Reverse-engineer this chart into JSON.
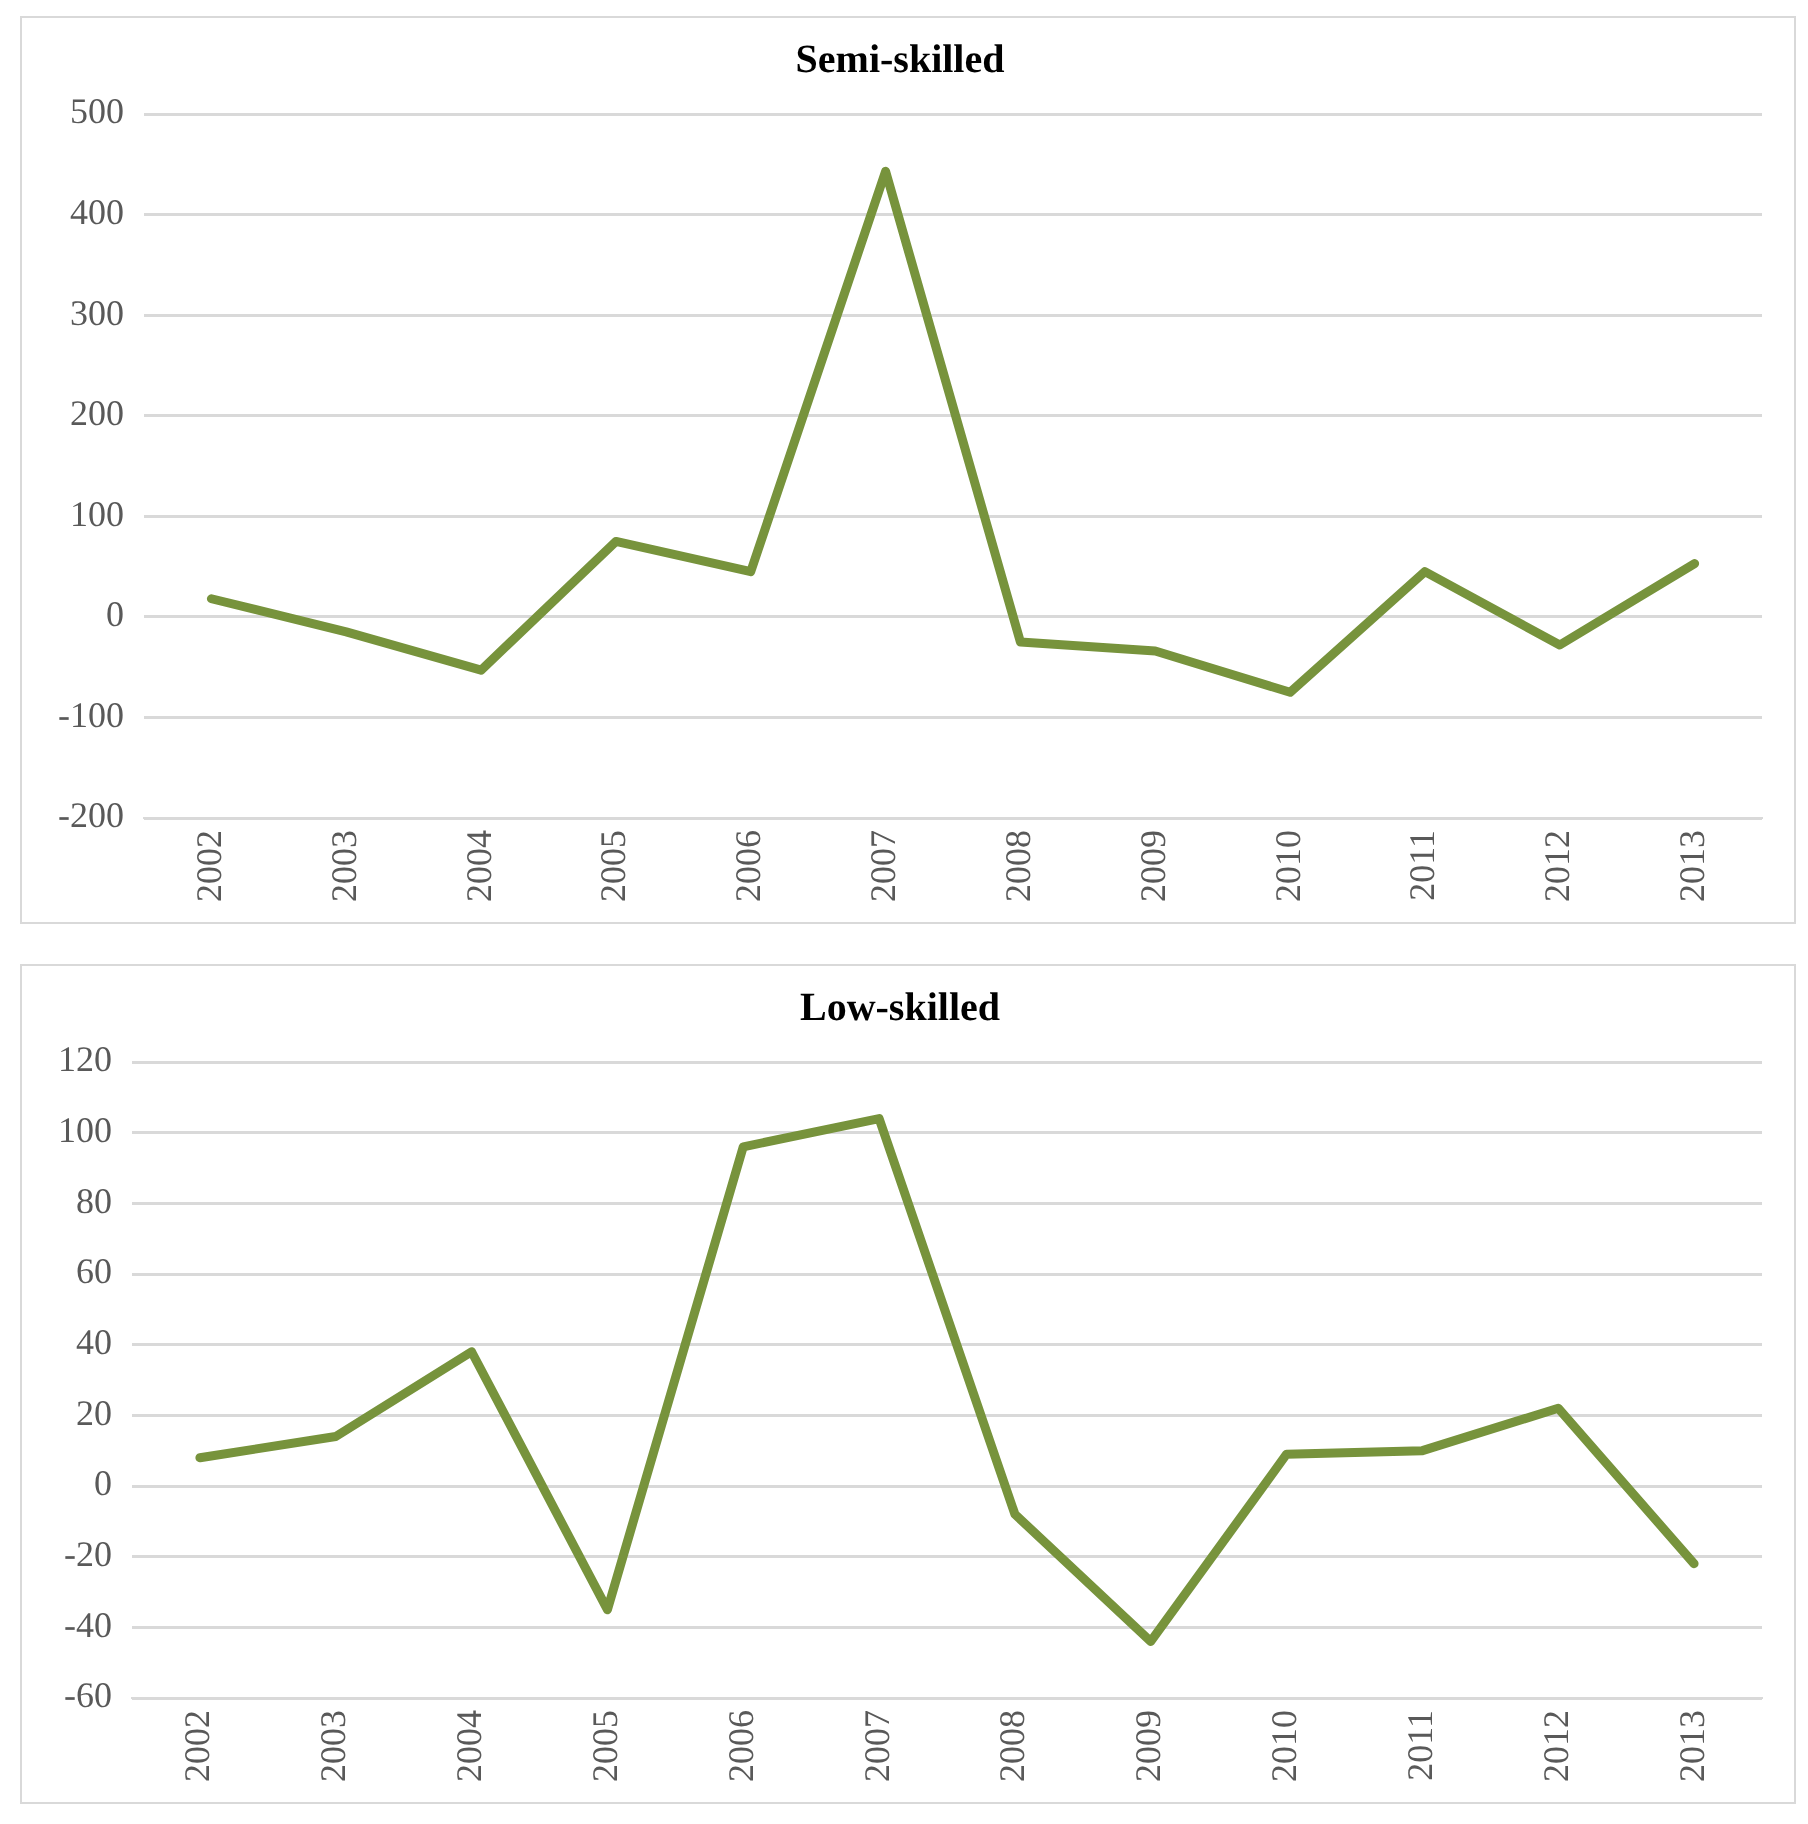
{
  "chart_data": [
    {
      "type": "line",
      "title": "Semi-skilled",
      "categories": [
        "2002",
        "2003",
        "2004",
        "2005",
        "2006",
        "2007",
        "2008",
        "2009",
        "2010",
        "2011",
        "2012",
        "2013"
      ],
      "series": [
        {
          "color": "#77933c",
          "values": [
            18,
            -15,
            -53,
            75,
            45,
            443,
            -25,
            -34,
            -75,
            45,
            -28,
            53
          ]
        }
      ],
      "ylim": [
        -200,
        500
      ],
      "yticks": [
        -200,
        -100,
        0,
        100,
        200,
        300,
        400,
        500
      ],
      "grid": "y",
      "marker": "none"
    },
    {
      "type": "line",
      "title": "Low-skilled",
      "categories": [
        "2002",
        "2003",
        "2004",
        "2005",
        "2006",
        "2007",
        "2008",
        "2009",
        "2010",
        "2011",
        "2012",
        "2013"
      ],
      "series": [
        {
          "color": "#77933c",
          "values": [
            8,
            14,
            38,
            -35,
            96,
            104,
            -8,
            -44,
            9,
            10,
            22,
            -22
          ]
        }
      ],
      "ylim": [
        -60,
        120
      ],
      "yticks": [
        -60,
        -40,
        -20,
        0,
        20,
        40,
        60,
        80,
        100,
        120
      ],
      "grid": "y",
      "marker": "none"
    }
  ]
}
